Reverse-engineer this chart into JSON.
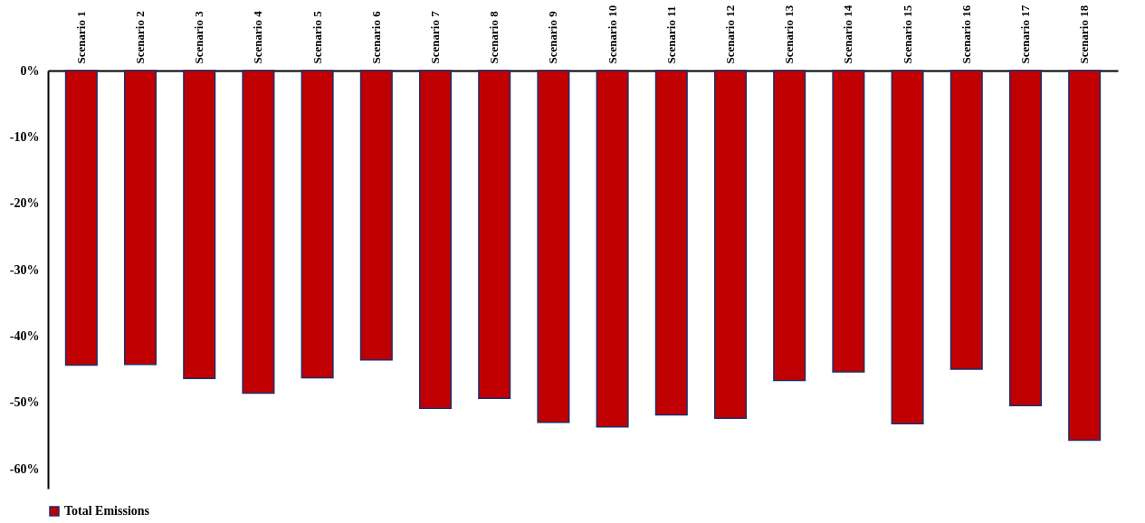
{
  "chart_data": {
    "type": "bar",
    "categories": [
      "Scenario 1",
      "Scenario 2",
      "Scenario 3",
      "Scenario 4",
      "Scenario 5",
      "Scenario 6",
      "Scenario 7",
      "Scenario 8",
      "Scenario 9",
      "Scenario 10",
      "Scenario 11",
      "Scenario 12",
      "Scenario 13",
      "Scenario 14",
      "Scenario 15",
      "Scenario 16",
      "Scenario 17",
      "Scenario 18"
    ],
    "series": [
      {
        "name": "Total Emissions",
        "color": "#c00000",
        "values": [
          -44.4,
          -44.3,
          -46.4,
          -48.6,
          -46.3,
          -43.6,
          -50.9,
          -49.4,
          -53.0,
          -53.7,
          -51.9,
          -52.4,
          -46.7,
          -45.4,
          -53.2,
          -45.0,
          -50.5,
          -55.7
        ]
      }
    ],
    "ylim": [
      -63,
      0
    ],
    "yticks": [
      {
        "value": 0,
        "label": "0%"
      },
      {
        "value": -10,
        "label": "-10%"
      },
      {
        "value": -20,
        "label": "-20%"
      },
      {
        "value": -30,
        "label": "-30%"
      },
      {
        "value": -40,
        "label": "-40%"
      },
      {
        "value": -50,
        "label": "-50%"
      },
      {
        "value": -60,
        "label": "-60%"
      }
    ],
    "grid": false,
    "legend": "bottom"
  }
}
